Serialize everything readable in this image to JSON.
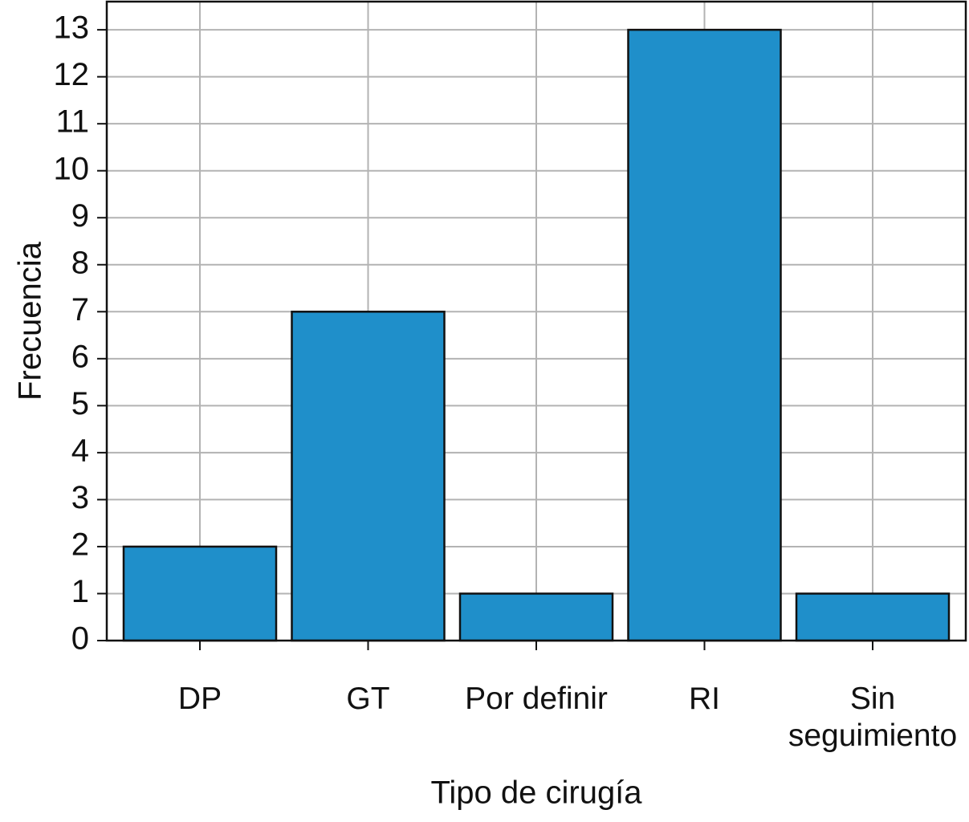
{
  "chart_data": {
    "type": "bar",
    "x_label": "Tipo de cirugía",
    "y_label": "Frecuencia",
    "categories": [
      "DP",
      "GT",
      "Por definir",
      "RI",
      "Sin seguimiento"
    ],
    "values": [
      2,
      7,
      1,
      13,
      1
    ],
    "color": "#1f8fca",
    "ylim": [
      0,
      13.6
    ],
    "yticks": [
      0,
      1,
      2,
      3,
      4,
      5,
      6,
      7,
      8,
      9,
      10,
      11,
      12,
      13
    ],
    "grid": true
  }
}
